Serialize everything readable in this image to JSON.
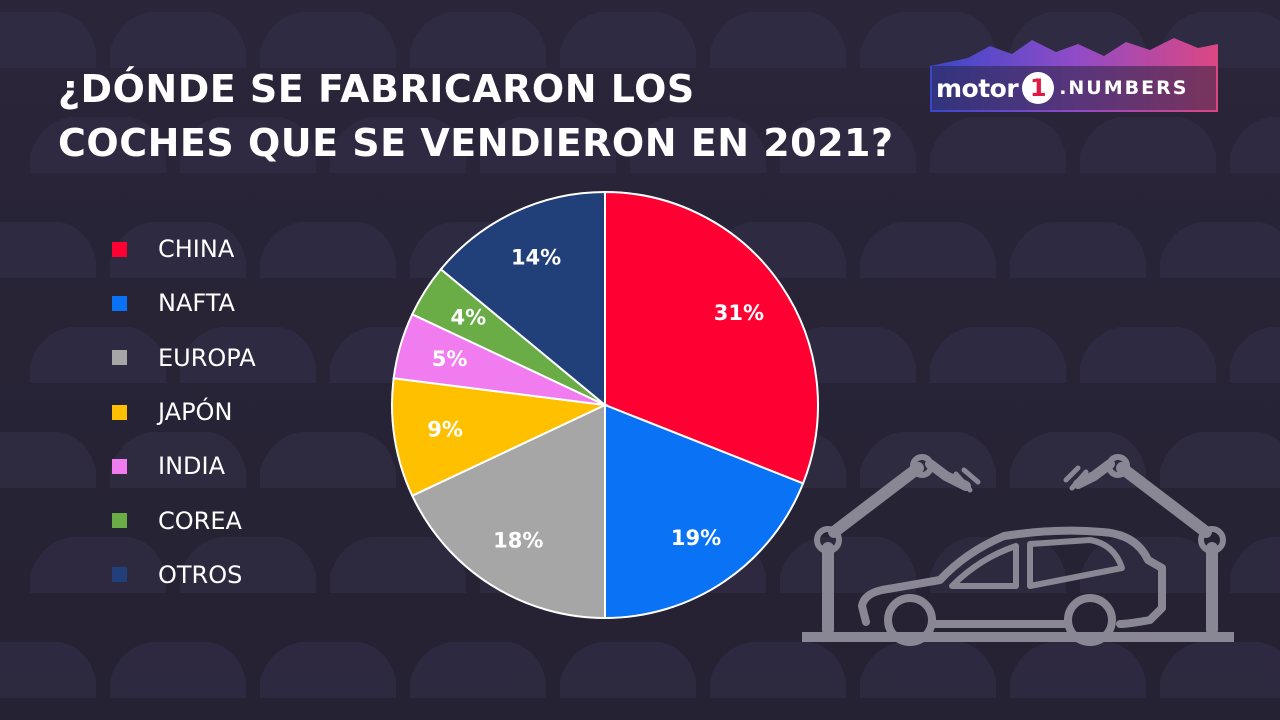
{
  "title": {
    "line1": "¿DÓNDE SE FABRICARON LOS",
    "line2": "COCHES QUE SE VENDIERON EN 2021?"
  },
  "logo": {
    "word": "motor",
    "one": "1",
    "numbers": ".NUMBERS"
  },
  "chart_data": {
    "type": "pie",
    "title": "¿DÓNDE SE FABRICARON LOS COCHES QUE SE VENDIERON EN 2021?",
    "legend_position": "left",
    "slices": [
      {
        "label": "CHINA",
        "value": 31,
        "display": "31%",
        "color": "#ff0033"
      },
      {
        "label": "NAFTA",
        "value": 19,
        "display": "19%",
        "color": "#0a72f5"
      },
      {
        "label": "EUROPA",
        "value": 18,
        "display": "18%",
        "color": "#a6a6a6"
      },
      {
        "label": "JAPÓN",
        "value": 9,
        "display": "9%",
        "color": "#ffc000"
      },
      {
        "label": "INDIA",
        "value": 5,
        "display": "5%",
        "color": "#f07cf0"
      },
      {
        "label": "COREA",
        "value": 4,
        "display": "4%",
        "color": "#6aac45"
      },
      {
        "label": "OTROS",
        "value": 14,
        "display": "14%",
        "color": "#213f78"
      }
    ]
  },
  "colors": {
    "background": "#262238",
    "text": "#ffffff",
    "illustration": "#8a8794"
  },
  "icons": {
    "illustration": "robot-arms-car-assembly-icon",
    "logo": "motor1-numbers-logo"
  }
}
